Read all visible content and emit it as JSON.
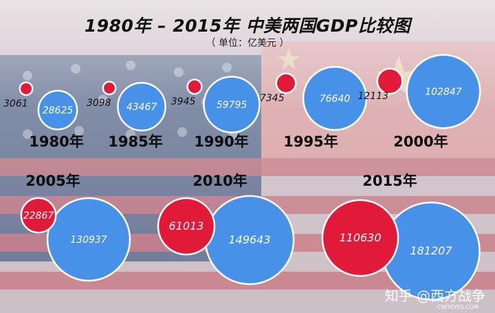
{
  "title": "1980年 – 2015年 中美两国GDP比较图",
  "subtitle": "（ 单位：亿美元 ）",
  "watermark": "知乎 @西方战争",
  "watermark_brand": "CNITEYES.COM",
  "colors": {
    "china": "#e21a3a",
    "usa": "#4891e8"
  },
  "chart_data": {
    "type": "bubble",
    "unit": "亿美元",
    "years": [
      "1980年",
      "1985年",
      "1990年",
      "1995年",
      "2000年",
      "2005年",
      "2010年",
      "2015年"
    ],
    "series": [
      {
        "name": "",
        "color": "#e21a3a",
        "values": [
          3061,
          3098,
          3945,
          7345,
          12113,
          22867,
          61013,
          110630
        ]
      },
      {
        "name": "",
        "color": "#4891e8",
        "values": [
          28625,
          43467,
          59795,
          76640,
          102847,
          130937,
          149643,
          181207
        ]
      }
    ]
  }
}
